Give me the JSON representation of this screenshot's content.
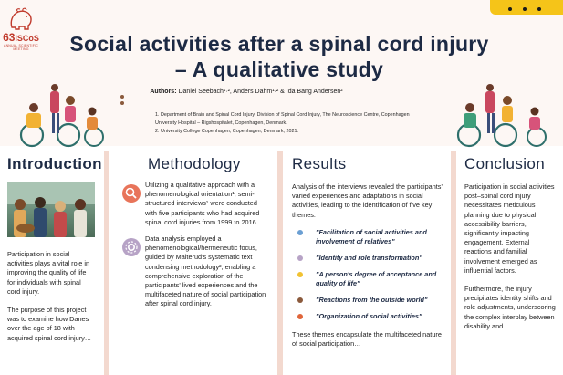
{
  "header": {
    "logo_number": "63",
    "logo_brand": "ISCoS",
    "logo_subtitle": "ANNUAL SCIENTIFIC MEETING",
    "title_line1": "Social activities after a spinal cord injury",
    "title_line2": "– A qualitative study",
    "authors_label": "Authors:",
    "authors": "Daniel Seebach¹·², Anders Dahm¹·² & Ida Bang Andersen²",
    "affiliation_1": "1. Department of Brain and Spinal Cord Injury, Division of Spinal Cord Injury, The Neuroscience Centre, Copenhagen University Hospital – Rigshospitalet, Copenhagen, Denmark.",
    "affiliation_2": "2. University College Copenhagen, Copenhagen, Denmark, 2021."
  },
  "introduction": {
    "title": "Introduction",
    "p1": "Participation in social activities plays a vital role in improving the quality of life for individuals with spinal cord injury.",
    "p2": "The purpose of this project was to examine how Danes over the age of 18 with acquired spinal cord injury…"
  },
  "methodology": {
    "title": "Methodology",
    "item1": "Utilizing a qualitative approach with a phenomenological orientation¹, semi-structured interviews¹ were conducted with five participants who had acquired spinal cord injuries from 1999 to 2016.",
    "item2": "Data analysis employed a phenomenological/hermeneutic focus, guided by Malterud's systematic text condensing methodology², enabling a comprehensive exploration of the participants' lived experiences and the multifaceted nature of social participation after spinal cord injury.",
    "icon1_color": "#e8745a",
    "icon2_color": "#b7a3c6"
  },
  "results": {
    "title": "Results",
    "intro": "Analysis of the interviews revealed the participants' varied experiences and adaptations in social activities, leading to the identification of five key themes:",
    "themes": [
      {
        "label": "\"Facilitation of social activities and involvement of relatives\"",
        "color": "#6b9fd3"
      },
      {
        "label": "\"Identity and role transformation\"",
        "color": "#b7a3c6"
      },
      {
        "label": "\"A person's degree of acceptance and quality of life\"",
        "color": "#f1c232"
      },
      {
        "label": "\"Reactions from the outside world\"",
        "color": "#8b5a3c"
      },
      {
        "label": "\"Organization of social activities\"",
        "color": "#e0653a"
      }
    ],
    "outro": "These themes encapsulate the multifaceted nature of social participation…"
  },
  "conclusion": {
    "title": "Conclusion",
    "p1": "Participation in social activities post–spinal cord injury necessitates meticulous planning due to physical accessibility barriers, significantly impacting engagement. External reactions and familial involvement emerged as influential factors.",
    "p2": "Furthermore, the injury precipitates identity shifts and role adjustments, underscoring the complex interplay between disability and…"
  },
  "colors": {
    "title": "#1d2a44",
    "accent_yellow": "#f5c419",
    "divider": "#f3d9cf",
    "header_bg": "#fdf7f4"
  }
}
